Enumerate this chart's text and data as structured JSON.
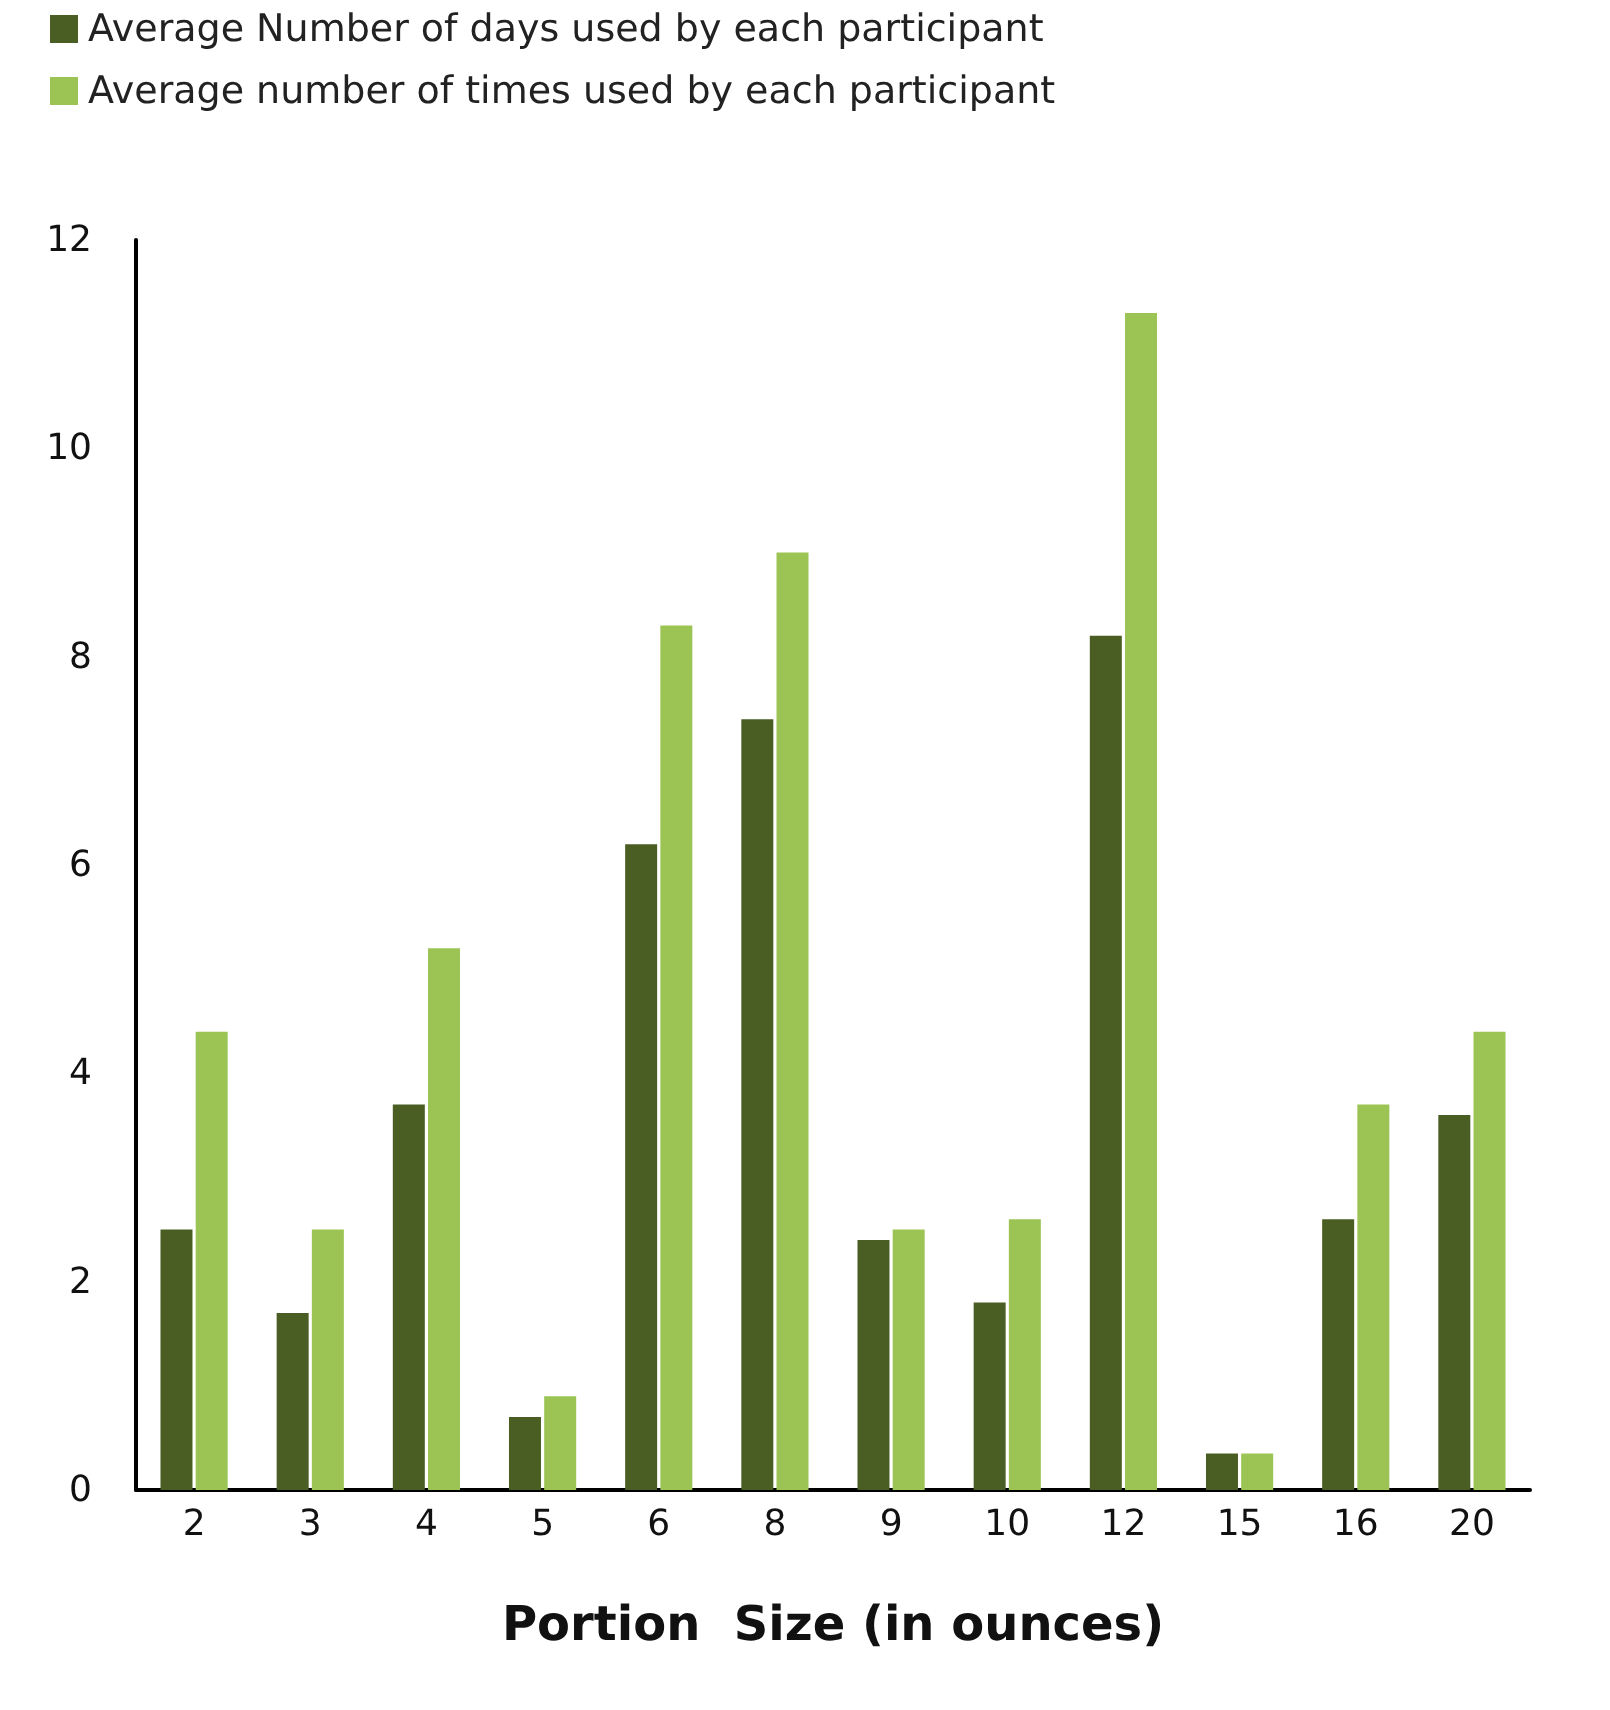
{
  "chart_data": {
    "type": "bar",
    "xlabel": "Portion  Size (in ounces)",
    "categories": [
      "2",
      "3",
      "4",
      "5",
      "6",
      "8",
      "9",
      "10",
      "12",
      "15",
      "16",
      "20"
    ],
    "series": [
      {
        "name": "Average Number of days used by each participant",
        "color": "#4a5e23",
        "values": [
          2.5,
          1.7,
          3.7,
          0.7,
          6.2,
          7.4,
          2.4,
          1.8,
          8.2,
          0.35,
          2.6,
          3.6
        ]
      },
      {
        "name": "Average number of times used by each participant",
        "color": "#9bc455",
        "values": [
          4.4,
          2.5,
          5.2,
          0.9,
          8.3,
          9.0,
          2.5,
          2.6,
          11.3,
          0.35,
          3.7,
          4.4
        ]
      }
    ],
    "ylim": [
      0,
      12
    ],
    "yticks": [
      0,
      2,
      4,
      6,
      8,
      10,
      12
    ],
    "grid": false,
    "legend": "top left"
  }
}
